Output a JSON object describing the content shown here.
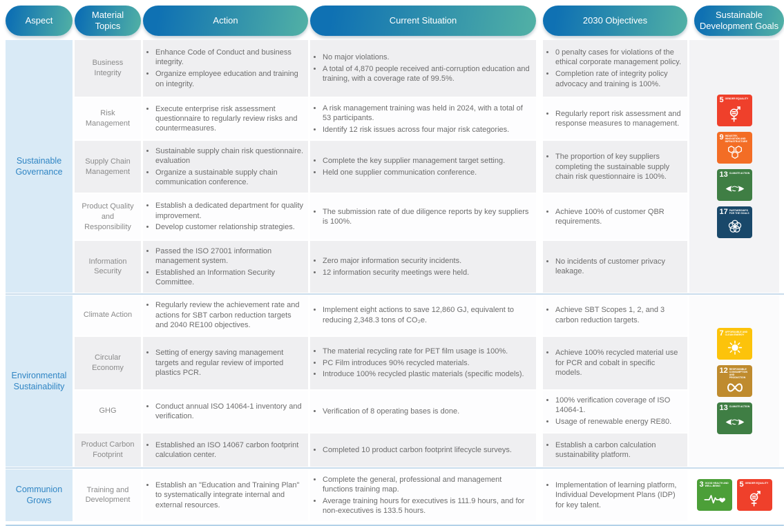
{
  "header": {
    "columns": [
      {
        "label": "Aspect"
      },
      {
        "label": "Material Topics"
      },
      {
        "label": "Action"
      },
      {
        "label": "Current Situation"
      },
      {
        "label": "2030 Objectives"
      },
      {
        "label": "Sustainable Development Goals"
      }
    ]
  },
  "sdg_defs": {
    "3": {
      "number": "3",
      "label": "GOOD HEALTH AND WELL-BEING",
      "color": "#4C9F38",
      "icon": "good-health-icon"
    },
    "5": {
      "number": "5",
      "label": "GENDER EQUALITY",
      "color": "#EF402B",
      "icon": "gender-equality-icon"
    },
    "7": {
      "number": "7",
      "label": "AFFORDABLE AND CLEAN ENERGY",
      "color": "#FCC30B",
      "icon": "clean-energy-icon"
    },
    "9": {
      "number": "9",
      "label": "INDUSTRY, INNOVATION AND INFRASTRUCTURE",
      "color": "#F36D25",
      "icon": "industry-innovation-icon"
    },
    "12": {
      "number": "12",
      "label": "RESPONSIBLE CONSUMPTION AND PRODUCTION",
      "color": "#BF8B2E",
      "icon": "responsible-consumption-icon"
    },
    "13": {
      "number": "13",
      "label": "CLIMATE ACTION",
      "color": "#3F7E44",
      "icon": "climate-action-icon"
    },
    "17": {
      "number": "17",
      "label": "PARTNERSHIPS FOR THE GOALS",
      "color": "#19486A",
      "icon": "partnerships-icon"
    }
  },
  "sections": [
    {
      "aspect": "Sustainable Governance",
      "sdgs": [
        "5",
        "9",
        "13",
        "17"
      ],
      "rows": [
        {
          "topic": "Business Integrity",
          "actions": [
            "Enhance Code of Conduct and business integrity.",
            "Organize employee education and training on integrity."
          ],
          "current": [
            "No major violations.",
            "A total of 4,870 people received anti-corruption education and training, with a coverage rate of 99.5%."
          ],
          "objectives": [
            "0 penalty cases for violations of the ethical corporate management policy.",
            "Completion rate of integrity policy advocacy and training is 100%."
          ]
        },
        {
          "topic": "Risk Management",
          "actions": [
            "Execute enterprise risk assessment questionnaire to regularly review risks and countermeasures."
          ],
          "current": [
            "A risk management training was held in 2024, with a total of 53 participants.",
            "Identify 12 risk issues across four major risk categories."
          ],
          "objectives": [
            "Regularly report risk assessment and response measures to management."
          ]
        },
        {
          "topic": "Supply Chain Management",
          "actions": [
            "Sustainable supply chain risk questionnaire. evaluation",
            "Organize a sustainable supply chain communication conference."
          ],
          "current": [
            "Complete the key supplier management target setting.",
            "Held one supplier communication conference."
          ],
          "objectives": [
            "The proportion of key suppliers completing the sustainable supply chain risk questionnaire is 100%."
          ]
        },
        {
          "topic": "Product Quality and Responsibility",
          "actions": [
            "Establish a dedicated department for quality improvement.",
            "Develop customer relationship strategies."
          ],
          "current": [
            "The submission rate of due diligence reports by key suppliers is 100%."
          ],
          "objectives": [
            "Achieve 100% of customer QBR requirements."
          ]
        },
        {
          "topic": "Information Security",
          "actions": [
            "Passed the ISO 27001 information management system.",
            "Established an Information Security Committee."
          ],
          "current": [
            "Zero major information security incidents.",
            "12 information security meetings were held."
          ],
          "objectives": [
            "No incidents of customer privacy leakage."
          ]
        }
      ]
    },
    {
      "aspect": "Environmental Sustainability",
      "sdgs": [
        "7",
        "12",
        "13"
      ],
      "rows": [
        {
          "topic": "Climate Action",
          "actions": [
            "Regularly review the achievement rate and actions for SBT carbon reduction targets and 2040 RE100 objectives."
          ],
          "current": [
            "Implement eight actions to save 12,860 GJ, equivalent to reducing 2,348.3 tons of CO₂e."
          ],
          "objectives": [
            "Achieve SBT Scopes 1, 2, and 3 carbon reduction targets."
          ]
        },
        {
          "topic": "Circular Economy",
          "actions": [
            "Setting of energy saving management targets and regular review of imported plastics PCR."
          ],
          "current": [
            "The material recycling rate for PET film usage is 100%.",
            "PC Film introduces 90% recycled materials.",
            "Introduce 100% recycled plastic materials (specific models)."
          ],
          "objectives": [
            "Achieve 100% recycled material use for PCR and cobalt in specific models."
          ]
        },
        {
          "topic": "GHG",
          "actions": [
            "Conduct annual ISO 14064-1 inventory and verification."
          ],
          "current": [
            "Verification of 8 operating bases is done."
          ],
          "objectives": [
            "100% verification coverage of ISO 14064-1.",
            "Usage of renewable energy RE80."
          ]
        },
        {
          "topic": "Product Carbon Footprint",
          "actions": [
            "Established an ISO 14067 carbon footprint calculation center."
          ],
          "current": [
            "Completed 10 product carbon footprint lifecycle surveys."
          ],
          "objectives": [
            "Establish a carbon calculation sustainability platform."
          ]
        }
      ]
    },
    {
      "aspect": "Communion Grows",
      "sdgs": [
        "3",
        "5"
      ],
      "rows": [
        {
          "topic": "Training and Development",
          "actions": [
            "Establish an \"Education and Training Plan\" to systematically integrate internal and external resources."
          ],
          "current": [
            "Complete the general, professional and management functions training map.",
            "Average training hours for executives is 111.9 hours, and for non-executives is 133.5 hours."
          ],
          "objectives": [
            "Implementation of learning platform, Individual Development Plans (IDP) for key talent."
          ]
        }
      ]
    }
  ]
}
